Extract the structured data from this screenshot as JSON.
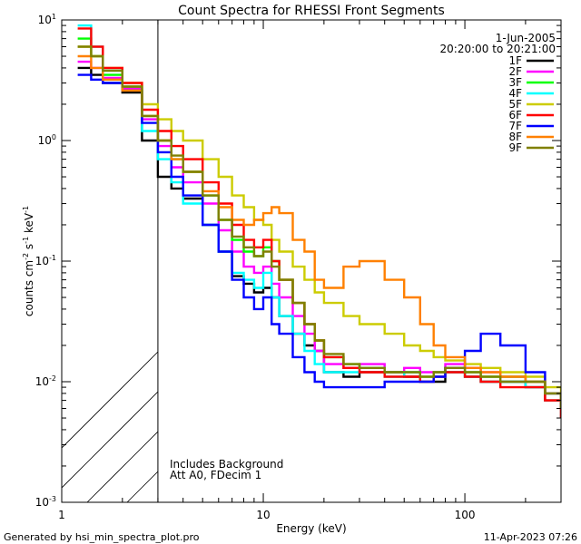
{
  "chart_data": {
    "type": "line",
    "title": "Count Spectra for RHESSI Front Segments",
    "xlabel": "Energy (keV)",
    "ylabel_main": "counts cm",
    "ylabel_exp1": "-2",
    "ylabel_mid": " s",
    "ylabel_exp2": "-1",
    "ylabel_end": " keV",
    "ylabel_exp3": "-1",
    "x_scale": "log",
    "y_scale": "log",
    "xlim": [
      1,
      300
    ],
    "ylim": [
      0.001,
      10
    ],
    "x_ticks": [
      {
        "value": 1,
        "label": "1"
      },
      {
        "value": 10,
        "label": "10"
      },
      {
        "value": 100,
        "label": "100"
      }
    ],
    "y_ticks": [
      {
        "value": 0.001,
        "base": "10",
        "exp": "-3"
      },
      {
        "value": 0.01,
        "base": "10",
        "exp": "-2"
      },
      {
        "value": 0.1,
        "base": "10",
        "exp": "-1"
      },
      {
        "value": 1,
        "base": "10",
        "exp": "0"
      },
      {
        "value": 10,
        "base": "10",
        "exp": "1"
      }
    ],
    "date": "1-Jun-2005",
    "time_range": "20:20:00 to 20:21:00",
    "hatched_region": [
      1,
      3
    ],
    "annotations": [
      "Includes Background",
      "Att A0, FDecim 1"
    ],
    "series": [
      {
        "name": "1F",
        "color": "#000000",
        "x": [
          1.2,
          1.4,
          1.6,
          2,
          2.5,
          3,
          3.5,
          4,
          5,
          6,
          7,
          8,
          9,
          10,
          11,
          12,
          14,
          16,
          18,
          20,
          25,
          30,
          40,
          50,
          60,
          70,
          80,
          100,
          120,
          150,
          200,
          250,
          300
        ],
        "y": [
          4.0,
          3.5,
          3.0,
          2.5,
          1.0,
          0.5,
          0.4,
          0.33,
          0.2,
          0.12,
          0.075,
          0.065,
          0.055,
          0.06,
          0.05,
          0.035,
          0.025,
          0.02,
          0.018,
          0.012,
          0.011,
          0.012,
          0.012,
          0.011,
          0.01,
          0.01,
          0.012,
          0.011,
          0.01,
          0.01,
          0.009,
          0.007,
          0.005
        ]
      },
      {
        "name": "2F",
        "color": "#ff00ff",
        "x": [
          1.2,
          1.4,
          1.6,
          2,
          2.5,
          3,
          3.5,
          4,
          5,
          6,
          7,
          8,
          9,
          10,
          11,
          12,
          14,
          16,
          18,
          20,
          25,
          30,
          40,
          50,
          60,
          70,
          80,
          100,
          120,
          150,
          200,
          250,
          300
        ],
        "y": [
          4.5,
          4.0,
          3.3,
          2.7,
          1.5,
          0.9,
          0.6,
          0.45,
          0.3,
          0.18,
          0.12,
          0.09,
          0.08,
          0.09,
          0.065,
          0.05,
          0.035,
          0.025,
          0.018,
          0.014,
          0.013,
          0.014,
          0.012,
          0.013,
          0.012,
          0.012,
          0.014,
          0.013,
          0.012,
          0.011,
          0.01,
          0.008,
          0.006
        ]
      },
      {
        "name": "3F",
        "color": "#00ff00",
        "x": [
          1.2,
          1.4,
          1.6,
          2,
          2.5,
          3,
          3.5,
          4,
          5,
          6,
          7,
          8,
          9,
          10,
          11,
          12,
          14,
          16,
          18,
          20,
          25,
          30,
          40,
          50,
          60,
          70,
          80,
          100,
          120,
          150,
          200,
          250,
          300
        ],
        "y": [
          7.0,
          5.0,
          3.5,
          2.8,
          1.6,
          1.0,
          0.7,
          0.55,
          0.35,
          0.22,
          0.15,
          0.12,
          0.11,
          0.13,
          0.1,
          0.07,
          0.045,
          0.03,
          0.022,
          0.016,
          0.014,
          0.013,
          0.012,
          0.012,
          0.011,
          0.012,
          0.013,
          0.012,
          0.011,
          0.011,
          0.01,
          0.008,
          0.006
        ]
      },
      {
        "name": "4F",
        "color": "#00ffff",
        "x": [
          1.2,
          1.4,
          1.6,
          2,
          2.5,
          3,
          3.5,
          4,
          5,
          6,
          7,
          8,
          9,
          10,
          11,
          12,
          14,
          16,
          18,
          20,
          25,
          30,
          40,
          50,
          60,
          70,
          80,
          100,
          120,
          150,
          200,
          250,
          300
        ],
        "y": [
          9.0,
          6.0,
          3.8,
          2.6,
          1.2,
          0.7,
          0.45,
          0.3,
          0.2,
          0.12,
          0.08,
          0.07,
          0.06,
          0.08,
          0.05,
          0.035,
          0.025,
          0.018,
          0.014,
          0.012,
          0.012,
          0.013,
          0.011,
          0.012,
          0.01,
          0.011,
          0.012,
          0.011,
          0.01,
          0.01,
          0.009,
          0.008,
          0.006
        ]
      },
      {
        "name": "5F",
        "color": "#cccc00",
        "x": [
          1.2,
          1.4,
          1.6,
          2,
          2.5,
          3,
          3.5,
          4,
          5,
          6,
          7,
          8,
          9,
          10,
          11,
          12,
          14,
          16,
          18,
          20,
          25,
          30,
          40,
          50,
          60,
          70,
          80,
          100,
          120,
          150,
          200,
          250,
          300
        ],
        "y": [
          6.0,
          5.0,
          4.0,
          3.0,
          2.0,
          1.5,
          1.2,
          1.0,
          0.7,
          0.5,
          0.35,
          0.28,
          0.22,
          0.2,
          0.15,
          0.12,
          0.09,
          0.07,
          0.055,
          0.045,
          0.035,
          0.03,
          0.025,
          0.02,
          0.018,
          0.016,
          0.015,
          0.014,
          0.013,
          0.012,
          0.011,
          0.009,
          0.007
        ]
      },
      {
        "name": "6F",
        "color": "#ff0000",
        "x": [
          1.2,
          1.4,
          1.6,
          2,
          2.5,
          3,
          3.5,
          4,
          5,
          6,
          7,
          8,
          9,
          10,
          11,
          12,
          14,
          16,
          18,
          20,
          25,
          30,
          40,
          50,
          60,
          70,
          80,
          100,
          120,
          150,
          200,
          250,
          300
        ],
        "y": [
          8.5,
          6.0,
          4.0,
          3.0,
          1.8,
          1.2,
          0.9,
          0.7,
          0.45,
          0.3,
          0.2,
          0.15,
          0.13,
          0.15,
          0.1,
          0.07,
          0.045,
          0.03,
          0.022,
          0.016,
          0.013,
          0.012,
          0.011,
          0.011,
          0.01,
          0.011,
          0.012,
          0.011,
          0.01,
          0.009,
          0.009,
          0.007,
          0.005
        ]
      },
      {
        "name": "7F",
        "color": "#0000ff",
        "x": [
          1.2,
          1.4,
          1.6,
          2,
          2.5,
          3,
          3.5,
          4,
          5,
          6,
          7,
          8,
          9,
          10,
          11,
          12,
          14,
          16,
          18,
          20,
          25,
          30,
          40,
          50,
          60,
          70,
          80,
          100,
          120,
          150,
          200,
          250,
          300
        ],
        "y": [
          3.5,
          3.2,
          3.0,
          2.6,
          1.4,
          0.8,
          0.5,
          0.35,
          0.2,
          0.12,
          0.07,
          0.05,
          0.04,
          0.05,
          0.03,
          0.025,
          0.016,
          0.012,
          0.01,
          0.009,
          0.009,
          0.009,
          0.01,
          0.01,
          0.01,
          0.011,
          0.013,
          0.018,
          0.025,
          0.02,
          0.012,
          0.008,
          0.006
        ]
      },
      {
        "name": "8F",
        "color": "#ff8000",
        "x": [
          1.2,
          1.4,
          1.6,
          2,
          2.5,
          3,
          3.5,
          4,
          5,
          6,
          7,
          8,
          9,
          10,
          11,
          12,
          14,
          16,
          18,
          20,
          25,
          30,
          40,
          50,
          60,
          70,
          80,
          100,
          120,
          150,
          200,
          250,
          300
        ],
        "y": [
          5.0,
          4.0,
          3.2,
          2.6,
          1.6,
          1.0,
          0.7,
          0.55,
          0.38,
          0.28,
          0.22,
          0.2,
          0.22,
          0.25,
          0.28,
          0.25,
          0.15,
          0.12,
          0.07,
          0.06,
          0.09,
          0.1,
          0.07,
          0.05,
          0.03,
          0.02,
          0.016,
          0.013,
          0.012,
          0.011,
          0.01,
          0.008,
          0.006
        ]
      },
      {
        "name": "9F",
        "color": "#808000",
        "x": [
          1.2,
          1.4,
          1.6,
          2,
          2.5,
          3,
          3.5,
          4,
          5,
          6,
          7,
          8,
          9,
          10,
          11,
          12,
          14,
          16,
          18,
          20,
          25,
          30,
          40,
          50,
          60,
          70,
          80,
          100,
          120,
          150,
          200,
          250,
          300
        ],
        "y": [
          6.0,
          5.0,
          3.8,
          2.8,
          1.6,
          1.0,
          0.75,
          0.55,
          0.35,
          0.22,
          0.16,
          0.13,
          0.11,
          0.12,
          0.09,
          0.07,
          0.045,
          0.03,
          0.022,
          0.017,
          0.014,
          0.013,
          0.012,
          0.012,
          0.011,
          0.012,
          0.013,
          0.012,
          0.011,
          0.01,
          0.01,
          0.008,
          0.006
        ]
      }
    ]
  },
  "footer": {
    "generated_by": "Generated by hsi_min_spectra_plot.pro",
    "timestamp": "11-Apr-2023 07:26"
  }
}
